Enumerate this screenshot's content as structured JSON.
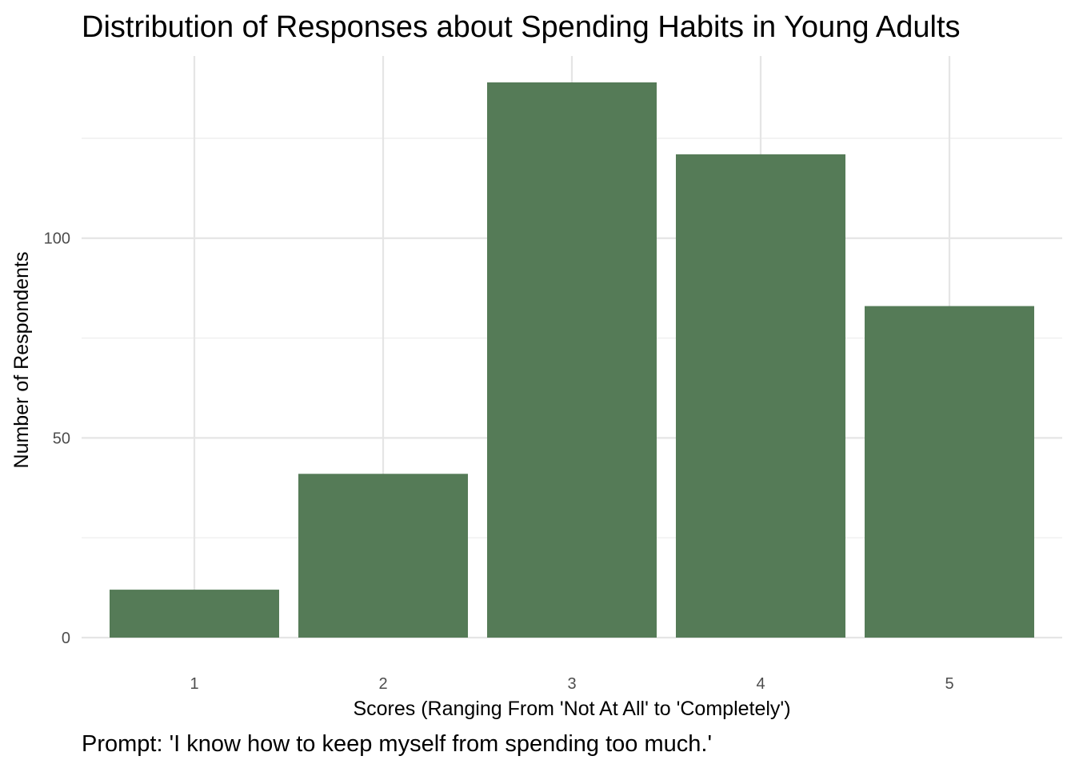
{
  "chart_data": {
    "type": "bar",
    "title": "Distribution of Responses about Spending Habits in Young Adults",
    "xlabel": "Scores (Ranging From 'Not At All' to 'Completely')",
    "ylabel": "Number of Respondents",
    "caption": "Prompt: 'I know how to keep myself from spending too much.'",
    "categories": [
      "1",
      "2",
      "3",
      "4",
      "5"
    ],
    "values": [
      12,
      41,
      139,
      121,
      83
    ],
    "ylim": [
      0,
      139
    ],
    "yticks": [
      0,
      50,
      100
    ],
    "yticks_minor": [
      25,
      75,
      125
    ],
    "grid": true,
    "legend": "none",
    "bar_color": "#557b57",
    "grid_color": "#e5e5e5"
  }
}
